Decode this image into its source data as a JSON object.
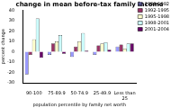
{
  "chart_data": {
    "type": "bar",
    "title": "change in mean before-tax family income",
    "x_label": "population percentile by family net worth",
    "y_label": "percent change",
    "categories": [
      "90-100",
      "75-89.9",
      "50-74.9",
      "25-49.9",
      "Less than 25"
    ],
    "series": [
      {
        "name": "1989-1992",
        "color": "#9999ff",
        "values": [
          -22,
          -3,
          -5,
          -3,
          5
        ]
      },
      {
        "name": "1992-1995",
        "color": "#993366",
        "values": [
          -3,
          8,
          5,
          6,
          7
        ]
      },
      {
        "name": "1995-1998",
        "color": "#ffffcc",
        "values": [
          12,
          10,
          10,
          8,
          3
        ]
      },
      {
        "name": "1998-2001",
        "color": "#ccffff",
        "values": [
          32,
          16,
          18,
          9,
          8
        ]
      },
      {
        "name": "2001-2004",
        "color": "#660066",
        "values": [
          -6,
          -2,
          1,
          2,
          8
        ]
      }
    ],
    "ylim": [
      -30,
      40
    ],
    "yticks": [
      -30,
      -20,
      -10,
      0,
      10,
      20,
      30,
      40
    ],
    "grid": false,
    "legend": "top-right"
  }
}
